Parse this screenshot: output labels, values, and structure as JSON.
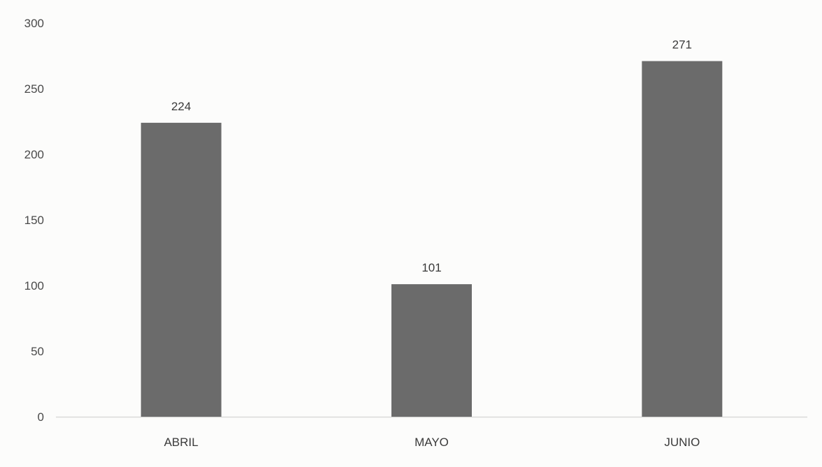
{
  "chart_data": {
    "type": "bar",
    "categories": [
      "ABRIL",
      "MAYO",
      "JUNIO"
    ],
    "values": [
      224,
      101,
      271
    ],
    "data_labels": [
      "224",
      "101",
      "271"
    ],
    "title": "",
    "xlabel": "",
    "ylabel": "",
    "ylim": [
      0,
      300
    ],
    "yticks": [
      0,
      50,
      100,
      150,
      200,
      250,
      300
    ],
    "ytick_labels": [
      "0",
      "50",
      "100",
      "150",
      "200",
      "250",
      "300"
    ],
    "grid": false,
    "legend": "none",
    "bar_color": "#6b6b6b",
    "axis_color": "#d9d9d9",
    "background": "#fcfcfb"
  }
}
